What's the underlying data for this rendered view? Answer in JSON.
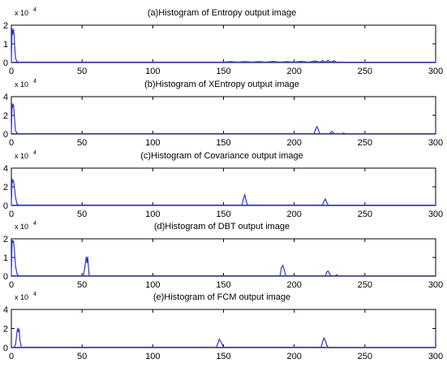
{
  "figure": {
    "background": "#ffffff",
    "axis_color": "#000000",
    "line_color": "#3333cc"
  },
  "chart_data": [
    {
      "type": "line",
      "title": "(a)Histogram of Entropy output image",
      "xlim": [
        0,
        300
      ],
      "ylim": [
        0,
        2
      ],
      "y_exponent": "x 10",
      "y_exponent_power": "4",
      "xticks": [
        "0",
        "50",
        "100",
        "150",
        "200",
        "250",
        "300"
      ],
      "yticks": [
        "0",
        "1",
        "2"
      ],
      "series": [
        {
          "x": [
            0,
            0.5,
            1,
            1.5,
            2,
            2.5,
            3,
            4,
            5,
            150,
            155,
            160,
            165,
            170,
            175,
            180,
            185,
            190,
            195,
            200,
            205,
            210,
            215,
            218,
            220,
            222,
            224,
            226,
            228,
            230,
            235
          ],
          "y": [
            0,
            1.8,
            1.5,
            1.75,
            1.4,
            0.6,
            0.2,
            0.02,
            0,
            0,
            0.03,
            0,
            0.03,
            0,
            0.03,
            0,
            0.04,
            0,
            0.03,
            0,
            0.04,
            0,
            0.06,
            0,
            0.08,
            0,
            0.1,
            0,
            0.07,
            0,
            0
          ]
        }
      ]
    },
    {
      "type": "line",
      "title": "(b)Histogram of XEntropy output image",
      "xlim": [
        0,
        300
      ],
      "ylim": [
        0,
        4
      ],
      "y_exponent": "x 10",
      "y_exponent_power": "4",
      "xticks": [
        "0",
        "50",
        "100",
        "150",
        "200",
        "250",
        "300"
      ],
      "yticks": [
        "0",
        "2",
        "4"
      ],
      "series": [
        {
          "x": [
            0,
            0.5,
            1,
            1.5,
            2,
            2.5,
            3,
            4,
            5,
            214,
            215,
            216,
            217,
            218,
            225,
            226,
            227,
            228,
            234,
            235,
            236
          ],
          "y": [
            0,
            3.2,
            2.9,
            3.1,
            2.2,
            1.0,
            0.3,
            0.05,
            0,
            0,
            0.4,
            0.75,
            0.45,
            0,
            0,
            0.15,
            0.2,
            0,
            0,
            0.05,
            0
          ]
        }
      ]
    },
    {
      "type": "line",
      "title": "(c)Histogram of Covariance output image",
      "xlim": [
        0,
        300
      ],
      "ylim": [
        0,
        4
      ],
      "y_exponent": "x 10",
      "y_exponent_power": "4",
      "xticks": [
        "0",
        "50",
        "100",
        "150",
        "200",
        "250",
        "300"
      ],
      "yticks": [
        "0",
        "2",
        "4"
      ],
      "series": [
        {
          "x": [
            0,
            0.5,
            1,
            1.5,
            2,
            3,
            4,
            5,
            163,
            164,
            165,
            166,
            167,
            220,
            221,
            222,
            223,
            224
          ],
          "y": [
            0,
            2.8,
            2.5,
            2.6,
            2.1,
            0.8,
            0.1,
            0,
            0,
            0.6,
            1.1,
            0.5,
            0,
            0,
            0.4,
            0.65,
            0.3,
            0
          ]
        }
      ]
    },
    {
      "type": "line",
      "title": "(d)Histogram of DBT output image",
      "xlim": [
        0,
        300
      ],
      "ylim": [
        0,
        2
      ],
      "y_exponent": "x 10",
      "y_exponent_power": "4",
      "xticks": [
        "0",
        "50",
        "100",
        "150",
        "200",
        "250",
        "300"
      ],
      "yticks": [
        "0",
        "1",
        "2"
      ],
      "series": [
        {
          "x": [
            0,
            0.5,
            1,
            1.5,
            2,
            3,
            4,
            5,
            51,
            52,
            53,
            53.5,
            54,
            55,
            190,
            191,
            192,
            193,
            194,
            222,
            223,
            224,
            225,
            226,
            229,
            230,
            231
          ],
          "y": [
            0,
            1.9,
            1.8,
            1.85,
            1.5,
            0.5,
            0.1,
            0,
            0,
            0.5,
            1.0,
            0.7,
            1.0,
            0,
            0,
            0.45,
            0.55,
            0.3,
            0,
            0,
            0.2,
            0.25,
            0.1,
            0,
            0,
            0.05,
            0
          ]
        }
      ]
    },
    {
      "type": "line",
      "title": "(e)Histogram of FCM output image",
      "xlim": [
        0,
        300
      ],
      "ylim": [
        0,
        4
      ],
      "y_exponent": "x 10",
      "y_exponent_power": "4",
      "xticks": [
        "0",
        "50",
        "100",
        "150",
        "200",
        "250",
        "300"
      ],
      "yticks": [
        "0",
        "2",
        "4"
      ],
      "series": [
        {
          "x": [
            0,
            2,
            3,
            4,
            4.5,
            5,
            5.5,
            6,
            7,
            145,
            146,
            147,
            148,
            149,
            150,
            219,
            220,
            221,
            222,
            223,
            224
          ],
          "y": [
            0,
            0,
            0.3,
            1.6,
            2.0,
            1.6,
            1.9,
            0.8,
            0,
            0,
            0.4,
            0.85,
            0.6,
            0.3,
            0,
            0,
            0.5,
            0.95,
            0.7,
            0.2,
            0
          ]
        }
      ]
    }
  ]
}
